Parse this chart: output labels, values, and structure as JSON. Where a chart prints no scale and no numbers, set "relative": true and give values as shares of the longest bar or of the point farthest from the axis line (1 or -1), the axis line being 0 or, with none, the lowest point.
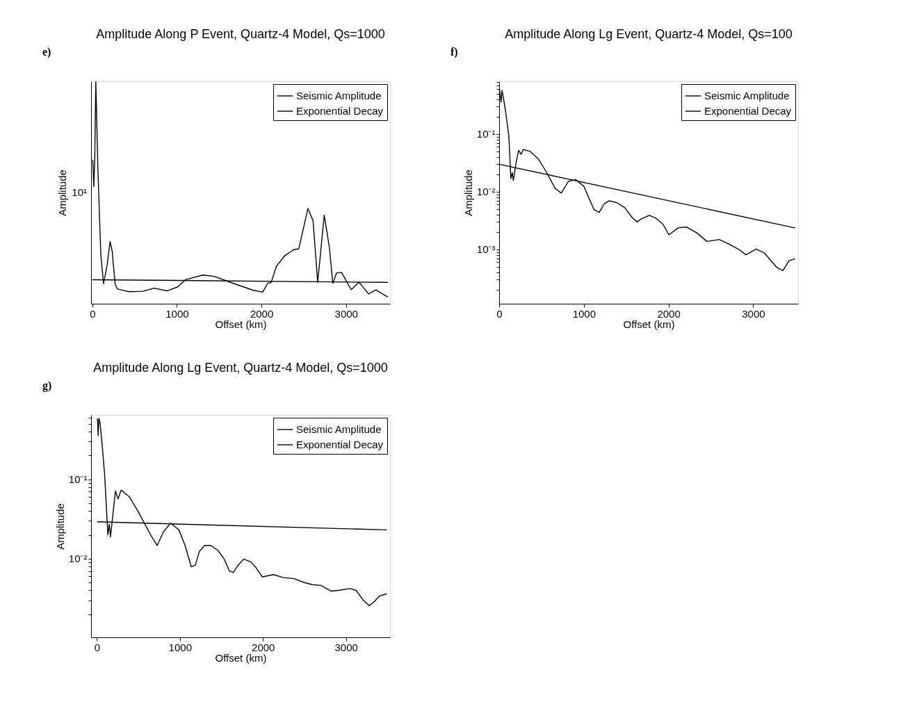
{
  "chart_data": [
    {
      "type": "line",
      "title": "Amplitude Along P Event, Quartz-4 Model, Qs=1000",
      "xlabel": "Offset (km)",
      "ylabel": "Amplitude",
      "annotations": [
        "e)",
        "10¹"
      ],
      "relative": true,
      "grid": false,
      "legend": "top right",
      "xlim": [
        -15,
        3520
      ],
      "xticks": [
        0,
        1000,
        2000,
        3000
      ],
      "series": [
        {
          "name": "Seismic Amplitude",
          "color": "#000000",
          "x": [
            5,
            17,
            29,
            41,
            65,
            101,
            133,
            174,
            210,
            234,
            270,
            294,
            342,
            439,
            596,
            729,
            885,
            1006,
            1102,
            1307,
            1440,
            1633,
            1898,
            2014,
            2072,
            2115,
            2176,
            2272,
            2381,
            2441,
            2549,
            2610,
            2665,
            2742,
            2803,
            2844,
            2887,
            2947,
            3061,
            3153,
            3266,
            3353,
            3490
          ],
          "values": [
            0.645,
            0.527,
            0.656,
            1,
            0.613,
            0.215,
            0.09,
            0.172,
            0.28,
            0.237,
            0.088,
            0.067,
            0.062,
            0.054,
            0.056,
            0.07,
            0.058,
            0.075,
            0.108,
            0.129,
            0.123,
            0.096,
            0.061,
            0.052,
            0.091,
            0.096,
            0.168,
            0.215,
            0.243,
            0.247,
            0.428,
            0.373,
            0.096,
            0.398,
            0.253,
            0.091,
            0.138,
            0.141,
            0.063,
            0.097,
            0.044,
            0.062,
            0.031
          ]
        },
        {
          "name": "Exponential Decay",
          "color": "#000000",
          "x": [
            5,
            3490
          ],
          "values": [
            0.108,
            0.096
          ]
        }
      ]
    },
    {
      "type": "line",
      "title": "Amplitude Along Lg Event, Quartz-4 Model, Qs=100",
      "xlabel": "Offset (km)",
      "ylabel": "Amplitude",
      "annotations": [
        "f)"
      ],
      "log": true,
      "grid": false,
      "legend": "top right",
      "xlim": [
        0,
        3530
      ],
      "xticks": [
        0,
        1000,
        2000,
        3000
      ],
      "ylim": [
        0.000115,
        0.82
      ],
      "yticks": [
        {
          "value": 0.0002,
          "label": null
        },
        {
          "value": 0.0003,
          "label": null
        },
        {
          "value": 0.0004,
          "label": null
        },
        {
          "value": 0.0005,
          "label": null
        },
        {
          "value": 0.0006,
          "label": null
        },
        {
          "value": 0.0007,
          "label": null
        },
        {
          "value": 0.0008,
          "label": null
        },
        {
          "value": 0.0009,
          "label": null
        },
        {
          "value": 0.001,
          "label": "10⁻³"
        },
        {
          "value": 0.002,
          "label": null
        },
        {
          "value": 0.003,
          "label": null
        },
        {
          "value": 0.004,
          "label": null
        },
        {
          "value": 0.005,
          "label": null
        },
        {
          "value": 0.006,
          "label": null
        },
        {
          "value": 0.007,
          "label": null
        },
        {
          "value": 0.008,
          "label": null
        },
        {
          "value": 0.009,
          "label": null
        },
        {
          "value": 0.01,
          "label": "10⁻²"
        },
        {
          "value": 0.02,
          "label": null
        },
        {
          "value": 0.03,
          "label": null
        },
        {
          "value": 0.04,
          "label": null
        },
        {
          "value": 0.05,
          "label": null
        },
        {
          "value": 0.06,
          "label": null
        },
        {
          "value": 0.07,
          "label": null
        },
        {
          "value": 0.08,
          "label": null
        },
        {
          "value": 0.09,
          "label": null
        },
        {
          "value": 0.1,
          "label": "10⁻¹"
        },
        {
          "value": 0.2,
          "label": null
        },
        {
          "value": 0.3,
          "label": null
        },
        {
          "value": 0.4,
          "label": null
        },
        {
          "value": 0.5,
          "label": null
        },
        {
          "value": 0.6,
          "label": null
        },
        {
          "value": 0.7,
          "label": null
        },
        {
          "value": 0.8,
          "label": null
        }
      ],
      "series": [
        {
          "name": "Seismic Amplitude",
          "color": "#000000",
          "x": [
            5,
            22,
            34,
            53,
            78,
            114,
            138,
            155,
            167,
            199,
            230,
            260,
            284,
            369,
            465,
            562,
            660,
            732,
            817,
            902,
            999,
            1120,
            1181,
            1241,
            1302,
            1387,
            1484,
            1569,
            1629,
            1678,
            1775,
            1847,
            1932,
            2005,
            2114,
            2211,
            2332,
            2453,
            2599,
            2720,
            2841,
            2914,
            3035,
            3132,
            3278,
            3350,
            3423,
            3491
          ],
          "values": [
            0.59,
            0.357,
            0.57,
            0.4,
            0.234,
            0.093,
            0.017,
            0.0214,
            0.0157,
            0.0314,
            0.052,
            0.0445,
            0.054,
            0.05,
            0.0367,
            0.0214,
            0.0115,
            0.0095,
            0.0151,
            0.0163,
            0.0125,
            0.0049,
            0.0044,
            0.0062,
            0.007,
            0.0065,
            0.0053,
            0.0036,
            0.003,
            0.0034,
            0.0039,
            0.0035,
            0.00277,
            0.0018,
            0.00237,
            0.00246,
            0.00195,
            0.00138,
            0.00149,
            0.00123,
            0.00098,
            0.00081,
            0.00102,
            0.00087,
            0.00049,
            0.00043,
            0.00064,
            0.00069
          ]
        },
        {
          "name": "Exponential Decay",
          "color": "#000000",
          "x": [
            0,
            3491
          ],
          "values": [
            0.03,
            0.00237
          ]
        }
      ]
    },
    {
      "type": "line",
      "title": "Amplitude Along Lg Event, Quartz-4 Model, Qs=1000",
      "xlabel": "Offset (km)",
      "ylabel": "Amplitude",
      "annotations": [
        "g)"
      ],
      "log": true,
      "grid": false,
      "legend": "top right",
      "xlim": [
        -70,
        3530
      ],
      "xticks": [
        0,
        1000,
        2000,
        3000
      ],
      "ylim": [
        0.00102,
        0.65
      ],
      "yticks": [
        {
          "value": 0.002,
          "label": null
        },
        {
          "value": 0.003,
          "label": null
        },
        {
          "value": 0.004,
          "label": null
        },
        {
          "value": 0.005,
          "label": null
        },
        {
          "value": 0.006,
          "label": null
        },
        {
          "value": 0.007,
          "label": null
        },
        {
          "value": 0.008,
          "label": null
        },
        {
          "value": 0.009,
          "label": null
        },
        {
          "value": 0.01,
          "label": "10⁻²"
        },
        {
          "value": 0.02,
          "label": null
        },
        {
          "value": 0.03,
          "label": null
        },
        {
          "value": 0.04,
          "label": null
        },
        {
          "value": 0.05,
          "label": null
        },
        {
          "value": 0.06,
          "label": null
        },
        {
          "value": 0.07,
          "label": null
        },
        {
          "value": 0.08,
          "label": null
        },
        {
          "value": 0.09,
          "label": null
        },
        {
          "value": 0.1,
          "label": "10⁻¹"
        },
        {
          "value": 0.2,
          "label": null
        },
        {
          "value": 0.3,
          "label": null
        },
        {
          "value": 0.4,
          "label": null
        },
        {
          "value": 0.5,
          "label": null
        },
        {
          "value": 0.6,
          "label": null
        }
      ],
      "series": [
        {
          "name": "Seismic Amplitude",
          "color": "#000000",
          "x": [
            7,
            15,
            25,
            39,
            69,
            94,
            132,
            149,
            164,
            193,
            223,
            255,
            292,
            392,
            491,
            578,
            653,
            727,
            801,
            888,
            987,
            1062,
            1136,
            1185,
            1235,
            1297,
            1371,
            1458,
            1533,
            1595,
            1644,
            1694,
            1768,
            1855,
            1917,
            1992,
            2128,
            2240,
            2376,
            2500,
            2599,
            2699,
            2822,
            2922,
            3046,
            3120,
            3207,
            3281,
            3343,
            3406,
            3487
          ],
          "values": [
            0.58,
            0.356,
            0.59,
            0.51,
            0.233,
            0.112,
            0.02,
            0.0273,
            0.0189,
            0.0362,
            0.0713,
            0.0569,
            0.0733,
            0.06,
            0.0405,
            0.0273,
            0.0195,
            0.0147,
            0.0218,
            0.0281,
            0.0231,
            0.0147,
            0.0079,
            0.0083,
            0.0124,
            0.0147,
            0.0147,
            0.0127,
            0.0099,
            0.007,
            0.0067,
            0.0081,
            0.0099,
            0.0091,
            0.0077,
            0.0059,
            0.0063,
            0.0058,
            0.0056,
            0.005,
            0.0047,
            0.0046,
            0.0039,
            0.004,
            0.0042,
            0.004,
            0.003,
            0.00255,
            0.0029,
            0.0034,
            0.0036
          ]
        },
        {
          "name": "Exponential Decay",
          "color": "#000000",
          "x": [
            7,
            3487
          ],
          "values": [
            0.0292,
            0.0231
          ]
        }
      ]
    }
  ]
}
